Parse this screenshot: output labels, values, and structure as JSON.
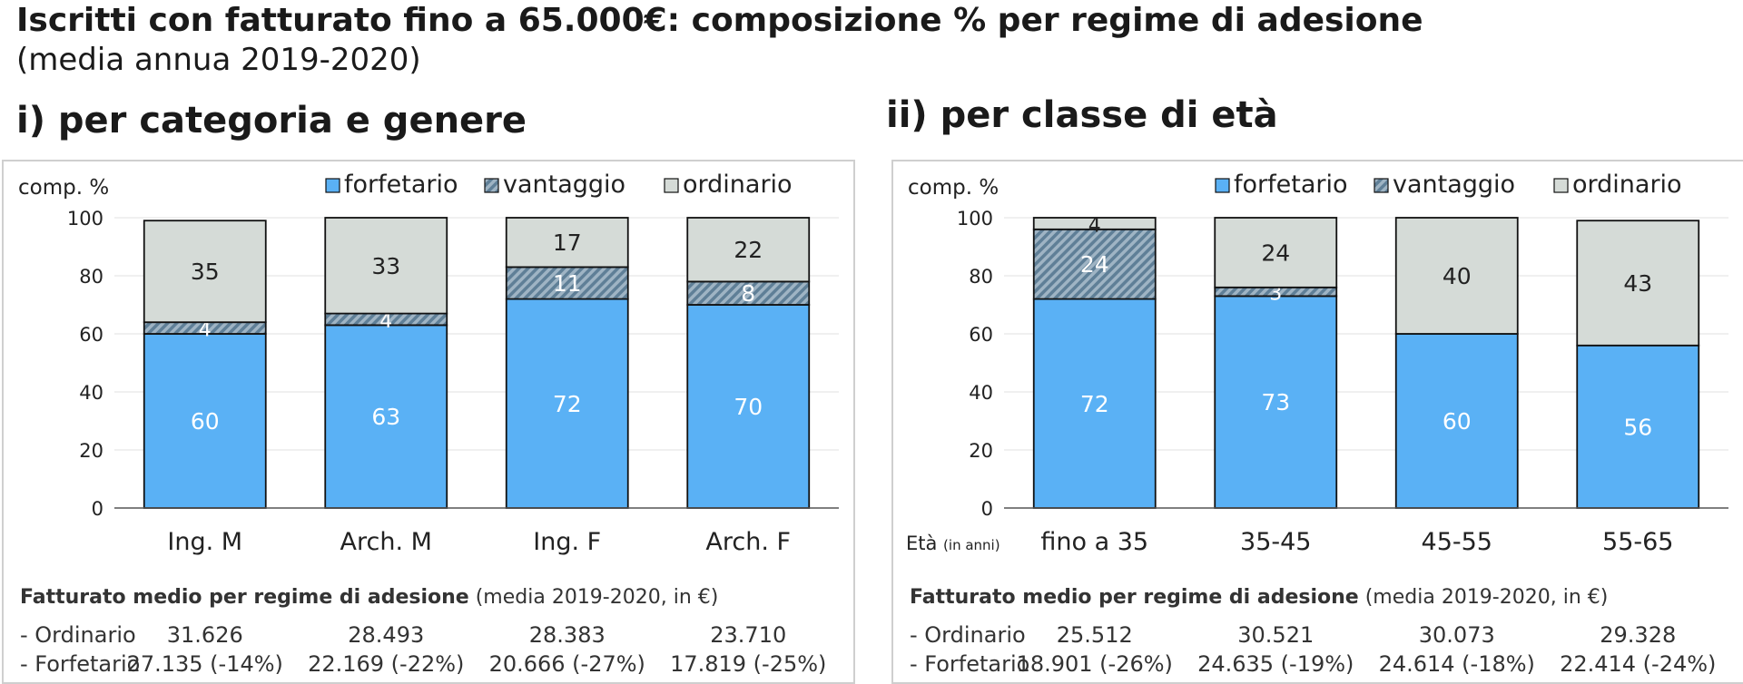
{
  "title": "Iscritti con fatturato fino a 65.000€: composizione % per regime di adesione",
  "subtitle": "(media annua 2019-2020)",
  "colors": {
    "forfetario": "#5ab1f5",
    "vantaggio": "#7d9ab0",
    "ordinario": "#d5dbd7"
  },
  "panels": [
    {
      "heading": "i) per categoria e genere",
      "footer": {
        "title_bold": "Fatturato medio per regime di adesione",
        "title_rest": "(media 2019-2020, in €)",
        "rows": [
          {
            "label": "- Ordinario",
            "values": [
              "31.626",
              "28.493",
              "28.383",
              "23.710"
            ]
          },
          {
            "label": "- Forfetario",
            "values": [
              "27.135 (-14%)",
              "22.169 (-22%)",
              "20.666 (-27%)",
              "17.819 (-25%)"
            ]
          }
        ]
      }
    },
    {
      "heading": "ii) per classe di età",
      "footer": {
        "title_bold": "Fatturato medio per regime di adesione",
        "title_rest": "(media 2019-2020, in €)",
        "rows": [
          {
            "label": "- Ordinario",
            "values": [
              "25.512",
              "30.521",
              "30.073",
              "29.328"
            ]
          },
          {
            "label": "- Forfetario",
            "values": [
              "18.901 (-26%)",
              "24.635 (-19%)",
              "24.614 (-18%)",
              "22.414 (-24%)"
            ]
          }
        ]
      }
    }
  ],
  "chart_data": [
    {
      "type": "bar",
      "stacked": true,
      "ylabel": "comp. %",
      "xlabel": "",
      "xlabel_note": "",
      "ylim": [
        0,
        100
      ],
      "yticks": [
        0,
        20,
        40,
        60,
        80,
        100
      ],
      "legend_position": "top",
      "categories": [
        "Ing. M",
        "Arch. M",
        "Ing. F",
        "Arch. F"
      ],
      "series": [
        {
          "name": "forfetario",
          "values": [
            60,
            63,
            72,
            70
          ]
        },
        {
          "name": "vantaggio",
          "values": [
            4,
            4,
            11,
            8
          ]
        },
        {
          "name": "ordinario",
          "values": [
            35,
            33,
            17,
            22
          ]
        }
      ]
    },
    {
      "type": "bar",
      "stacked": true,
      "ylabel": "comp. %",
      "xlabel": "Età",
      "xlabel_note": "(in anni)",
      "ylim": [
        0,
        100
      ],
      "yticks": [
        0,
        20,
        40,
        60,
        80,
        100
      ],
      "legend_position": "top",
      "categories": [
        "fino a 35",
        "35-45",
        "45-55",
        "55-65"
      ],
      "series": [
        {
          "name": "forfetario",
          "values": [
            72,
            73,
            60,
            56
          ]
        },
        {
          "name": "vantaggio",
          "values": [
            24,
            3,
            0,
            0
          ]
        },
        {
          "name": "ordinario",
          "values": [
            4,
            24,
            40,
            43
          ]
        }
      ]
    }
  ]
}
